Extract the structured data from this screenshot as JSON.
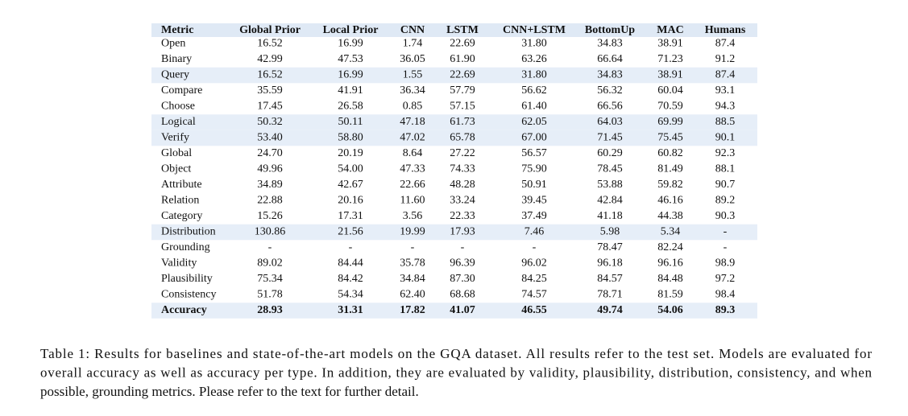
{
  "table": {
    "header": [
      "Metric",
      "Global Prior",
      "Local Prior",
      "CNN",
      "LSTM",
      "CNN+LSTM",
      "BottomUp",
      "MAC",
      "Humans"
    ],
    "rows": [
      [
        "Open",
        "16.52",
        "16.99",
        "1.74",
        "22.69",
        "31.80",
        "34.83",
        "38.91",
        "87.4"
      ],
      [
        "Binary",
        "42.99",
        "47.53",
        "36.05",
        "61.90",
        "63.26",
        "66.64",
        "71.23",
        "91.2"
      ],
      [
        "Query",
        "16.52",
        "16.99",
        "1.55",
        "22.69",
        "31.80",
        "34.83",
        "38.91",
        "87.4"
      ],
      [
        "Compare",
        "35.59",
        "41.91",
        "36.34",
        "57.79",
        "56.62",
        "56.32",
        "60.04",
        "93.1"
      ],
      [
        "Choose",
        "17.45",
        "26.58",
        "0.85",
        "57.15",
        "61.40",
        "66.56",
        "70.59",
        "94.3"
      ],
      [
        "Logical",
        "50.32",
        "50.11",
        "47.18",
        "61.73",
        "62.05",
        "64.03",
        "69.99",
        "88.5"
      ],
      [
        "Verify",
        "53.40",
        "58.80",
        "47.02",
        "65.78",
        "67.00",
        "71.45",
        "75.45",
        "90.1"
      ],
      [
        "Global",
        "24.70",
        "20.19",
        "8.64",
        "27.22",
        "56.57",
        "60.29",
        "60.82",
        "92.3"
      ],
      [
        "Object",
        "49.96",
        "54.00",
        "47.33",
        "74.33",
        "75.90",
        "78.45",
        "81.49",
        "88.1"
      ],
      [
        "Attribute",
        "34.89",
        "42.67",
        "22.66",
        "48.28",
        "50.91",
        "53.88",
        "59.82",
        "90.7"
      ],
      [
        "Relation",
        "22.88",
        "20.16",
        "11.60",
        "33.24",
        "39.45",
        "42.84",
        "46.16",
        "89.2"
      ],
      [
        "Category",
        "15.26",
        "17.31",
        "3.56",
        "22.33",
        "37.49",
        "41.18",
        "44.38",
        "90.3"
      ],
      [
        "Distribution",
        "130.86",
        "21.56",
        "19.99",
        "17.93",
        "7.46",
        "5.98",
        "5.34",
        "-"
      ],
      [
        "Grounding",
        "-",
        "-",
        "-",
        "-",
        "-",
        "78.47",
        "82.24",
        "-"
      ],
      [
        "Validity",
        "89.02",
        "84.44",
        "35.78",
        "96.39",
        "96.02",
        "96.18",
        "96.16",
        "98.9"
      ],
      [
        "Plausibility",
        "75.34",
        "84.42",
        "34.84",
        "87.30",
        "84.25",
        "84.57",
        "84.48",
        "97.2"
      ],
      [
        "Consistency",
        "51.78",
        "54.34",
        "62.40",
        "68.68",
        "74.57",
        "78.71",
        "81.59",
        "98.4"
      ],
      [
        "Accuracy",
        "28.93",
        "31.31",
        "17.82",
        "41.07",
        "46.55",
        "49.74",
        "54.06",
        "89.3"
      ]
    ]
  },
  "caption": {
    "lines": [
      "Table 1: Results for baselines and state-of-the-art models on the GQA dataset. All results refer to the test set. Models are evaluated for",
      "overall accuracy as well as accuracy per type. In addition, they are evaluated by validity, plausibility, distribution, consistency, and when",
      "possible, grounding metrics. Please refer to the text for further detail."
    ]
  }
}
